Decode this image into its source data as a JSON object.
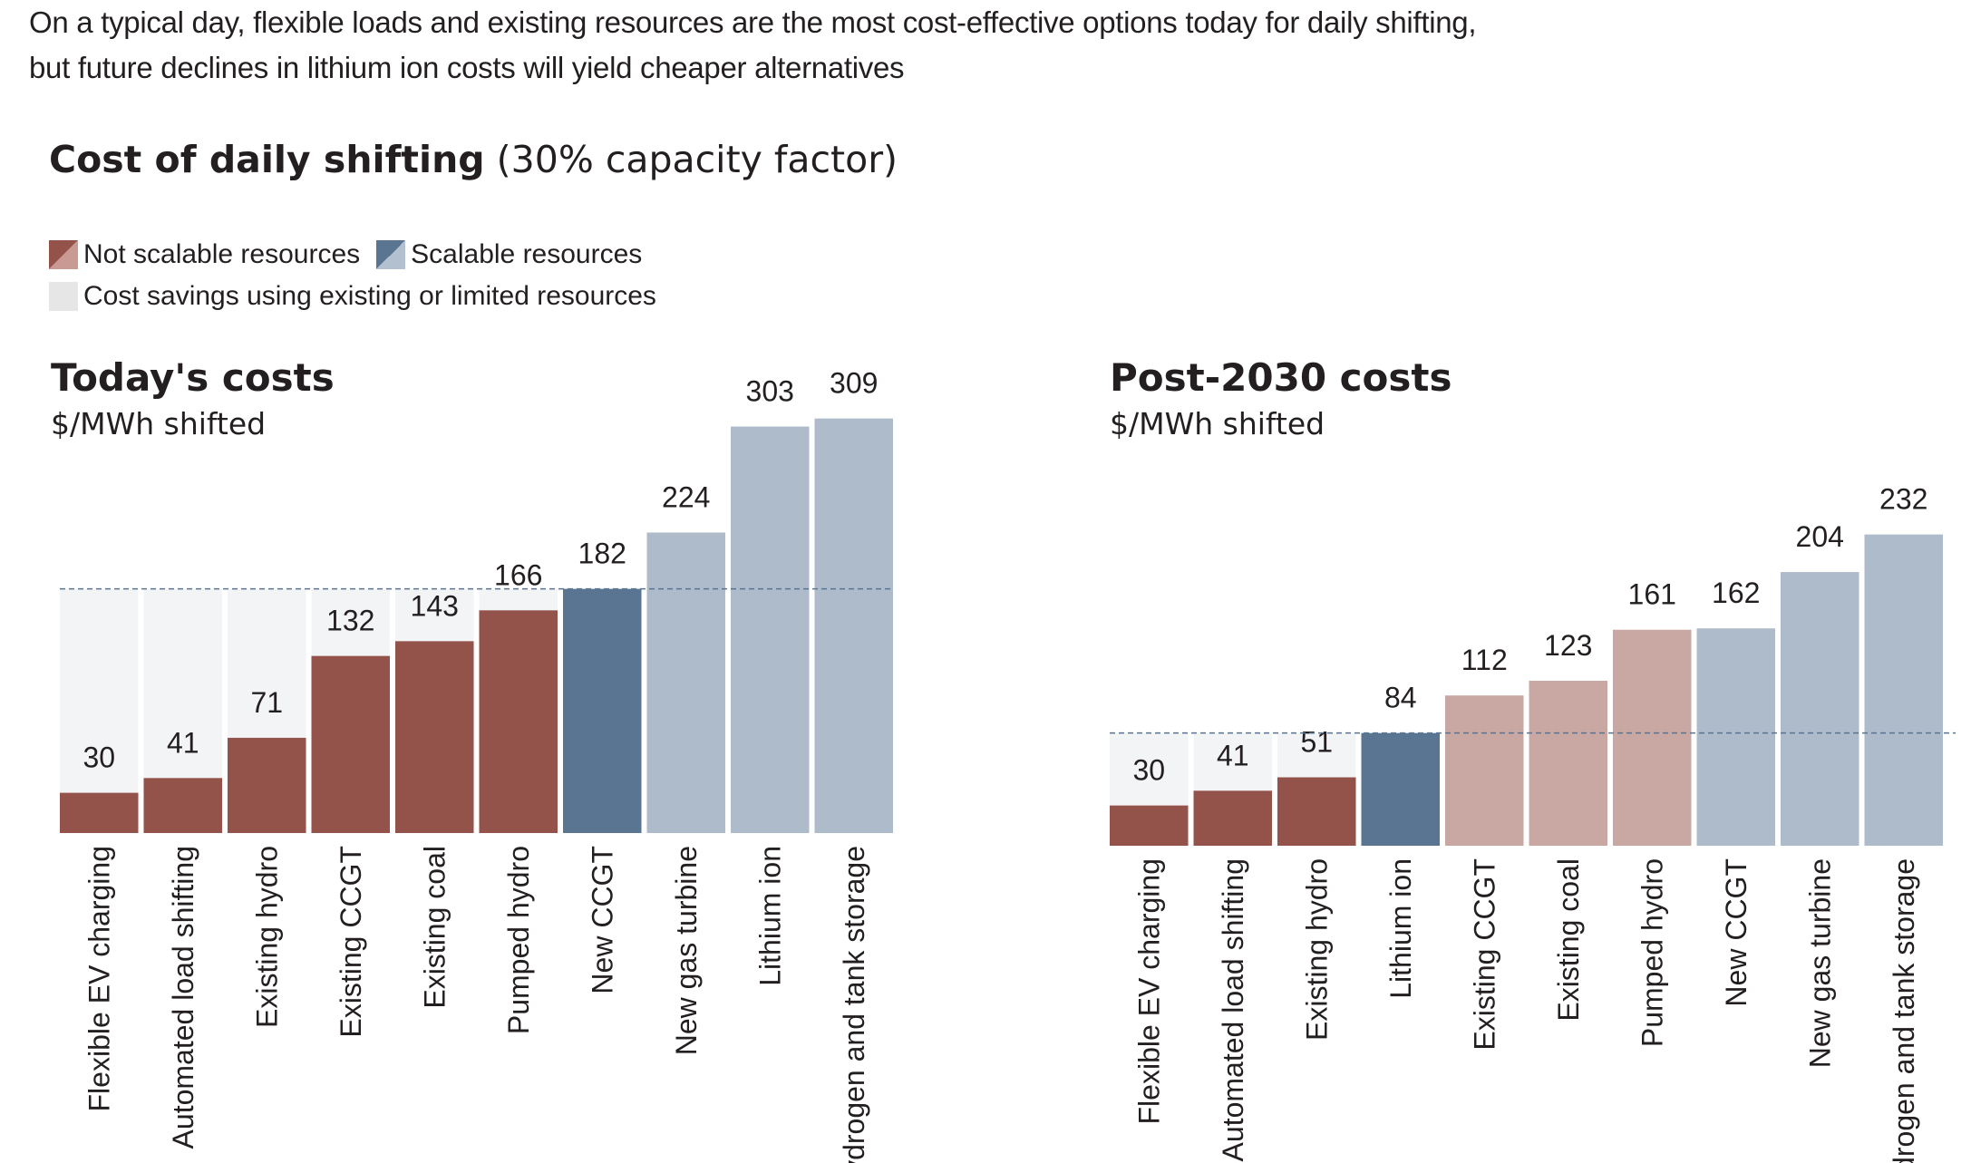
{
  "headline": {
    "line1": "On a typical day, flexible loads and existing resources are the most cost-effective options today for daily shifting,",
    "line2": "but future declines in lithium ion costs will yield cheaper alternatives"
  },
  "title": {
    "main": "Cost of daily shifting",
    "sub": "(30% capacity factor)"
  },
  "legend": {
    "not_scalable": "Not scalable resources",
    "scalable": "Scalable resources",
    "savings": "Cost savings using existing or limited resources"
  },
  "colors": {
    "not_scalable_dark": "#93524a",
    "not_scalable_light": "#c9a7a3",
    "scalable_dark": "#5a7591",
    "scalable_light": "#adbbcb",
    "savings": "#f3f4f6",
    "reference_line": "#5a7591"
  },
  "chart_data": [
    {
      "type": "bar",
      "title": "Today's costs",
      "ylabel": "$/MWh shifted",
      "categories": [
        "Flexible EV charging",
        "Automated load shifting",
        "Existing hydro",
        "Existing CCGT",
        "Existing coal",
        "Pumped hydro",
        "New CCGT",
        "New gas turbine",
        "Lithium ion",
        "Hydrogen and tank storage"
      ],
      "values": [
        30,
        41,
        71,
        132,
        143,
        166,
        182,
        224,
        303,
        309
      ],
      "bar_style": [
        "not_scalable_dark",
        "not_scalable_dark",
        "not_scalable_dark",
        "not_scalable_dark",
        "not_scalable_dark",
        "not_scalable_dark",
        "scalable_dark",
        "scalable_light",
        "scalable_light",
        "scalable_light"
      ],
      "reference_value": 182,
      "ylim": [
        0,
        320
      ]
    },
    {
      "type": "bar",
      "title": "Post-2030 costs",
      "ylabel": "$/MWh shifted",
      "categories": [
        "Flexible EV charging",
        "Automated load shifting",
        "Existing hydro",
        "Lithium ion",
        "Existing CCGT",
        "Existing coal",
        "Pumped hydro",
        "New CCGT",
        "New gas turbine",
        "Hydrogen and tank storage"
      ],
      "values": [
        30,
        41,
        51,
        84,
        112,
        123,
        161,
        162,
        204,
        232
      ],
      "bar_style": [
        "not_scalable_dark",
        "not_scalable_dark",
        "not_scalable_dark",
        "scalable_dark",
        "not_scalable_light",
        "not_scalable_light",
        "not_scalable_light",
        "scalable_light",
        "scalable_light",
        "scalable_light"
      ],
      "reference_value": 84,
      "ylim": [
        0,
        320
      ]
    }
  ]
}
